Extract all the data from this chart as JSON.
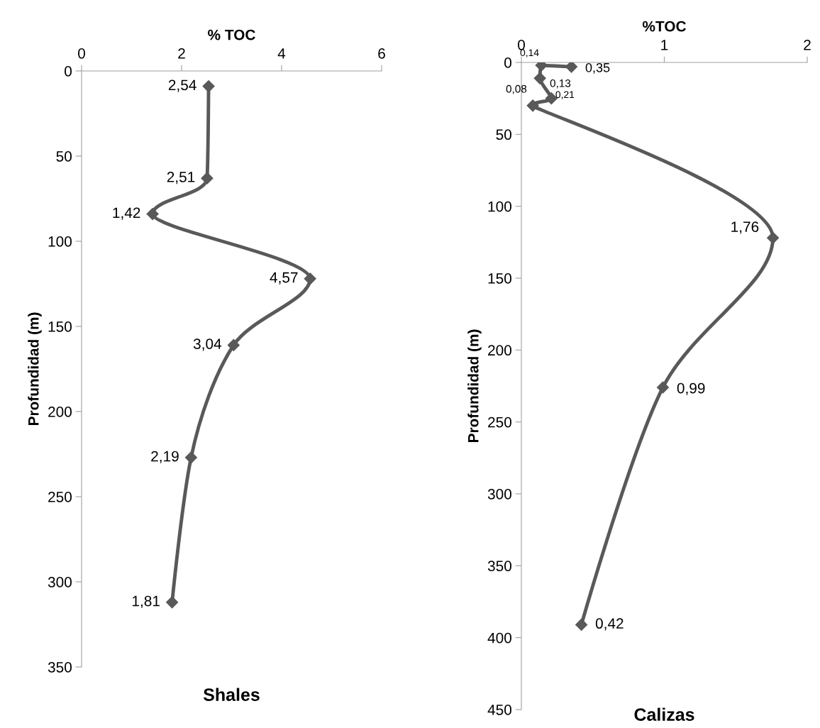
{
  "chart_data": [
    {
      "type": "line",
      "orientation": "horizontal",
      "title": "Shales",
      "xlabel": "% TOC",
      "ylabel": "Profundidad (m)",
      "xlim": [
        0,
        6
      ],
      "xticks": [
        0,
        2,
        4,
        6
      ],
      "ylim": [
        350,
        0
      ],
      "yticks": [
        0,
        50,
        100,
        150,
        200,
        250,
        300,
        350
      ],
      "marker": "diamond",
      "grid": false,
      "legend": false,
      "series": [
        {
          "color": "#595959",
          "x": [
            9,
            63,
            84,
            122,
            161,
            227,
            312
          ],
          "values": [
            2.54,
            2.51,
            1.42,
            4.57,
            3.04,
            2.19,
            1.81
          ],
          "value_labels": [
            "2,54",
            "2,51",
            "1,42",
            "4,57",
            "3,04",
            "2,19",
            "1,81"
          ]
        }
      ]
    },
    {
      "type": "line",
      "orientation": "horizontal",
      "title": "Calizas",
      "xlabel": "%TOC",
      "ylabel": "Profundidad (m)",
      "xlim": [
        0,
        2
      ],
      "xticks": [
        0,
        1,
        2
      ],
      "ylim": [
        450,
        0
      ],
      "yticks": [
        0,
        50,
        100,
        150,
        200,
        250,
        300,
        350,
        400,
        450
      ],
      "marker": "diamond",
      "grid": false,
      "legend": false,
      "series": [
        {
          "color": "#595959",
          "x": [
            3,
            2,
            11,
            25,
            30,
            122,
            226,
            391
          ],
          "values": [
            0.35,
            0.14,
            0.13,
            0.21,
            0.08,
            1.76,
            0.99,
            0.42
          ],
          "value_labels": [
            "0,35",
            "0,14",
            "0,13",
            "0,21",
            "0,08",
            "1,76",
            "0,99",
            "0,42"
          ]
        }
      ]
    }
  ]
}
